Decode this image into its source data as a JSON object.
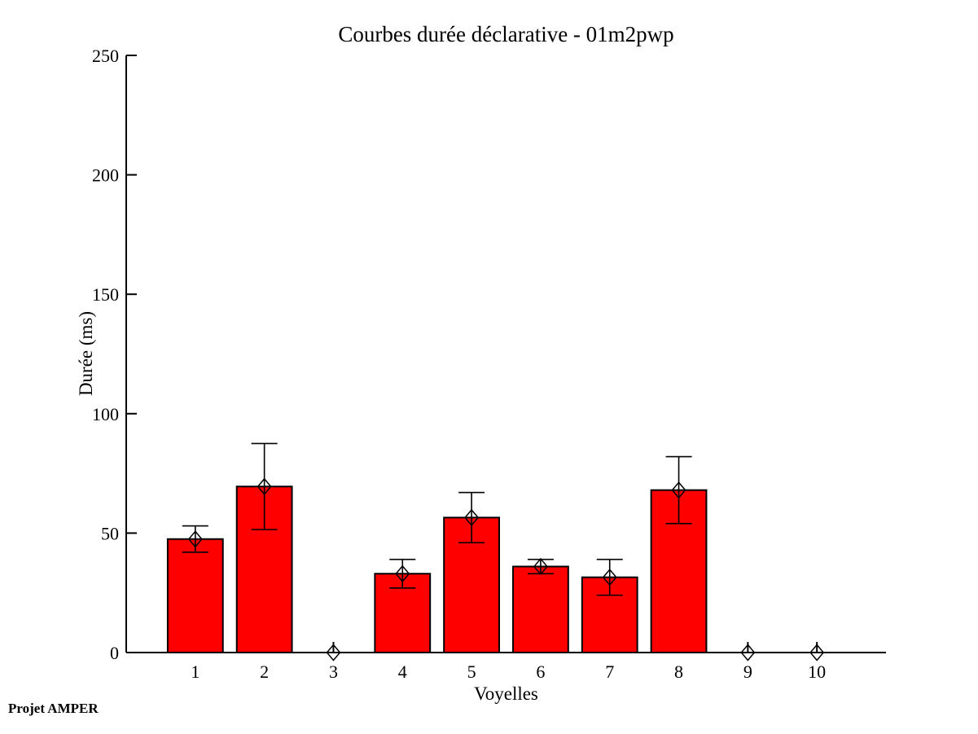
{
  "chart_data": {
    "type": "bar",
    "title": "Courbes durée déclarative - 01m2pwp",
    "xlabel": "Voyelles",
    "ylabel": "Durée (ms)",
    "categories": [
      "1",
      "2",
      "3",
      "4",
      "5",
      "6",
      "7",
      "8",
      "9",
      "10"
    ],
    "values": [
      47.5,
      69.5,
      0,
      33,
      56.5,
      36,
      31.5,
      68,
      0,
      0
    ],
    "error_bars": [
      5.5,
      18,
      0,
      6,
      10.5,
      3,
      7.5,
      14,
      0,
      0
    ],
    "yticks": [
      0,
      50,
      100,
      150,
      200,
      250
    ],
    "ylim": [
      0,
      250
    ],
    "xlim": [
      0,
      11
    ],
    "bar_color": "#ff0000",
    "bar_edge_color": "#000000",
    "axis_color": "#000000",
    "background": "#ffffff",
    "marker": "open-diamond",
    "grid": false,
    "legend": null,
    "annotation": "Projet AMPER"
  }
}
